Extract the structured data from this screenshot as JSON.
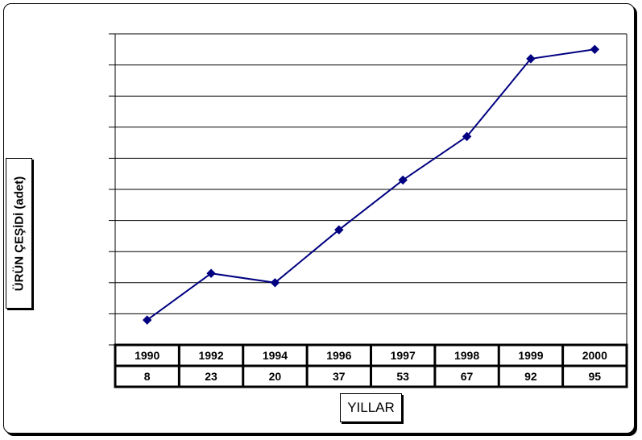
{
  "chart_data": {
    "type": "line",
    "title": "",
    "xlabel": "YILLAR",
    "ylabel": "ÜRÜN ÇEŞİDİ (adet)",
    "categories": [
      "1990",
      "1992",
      "1994",
      "1996",
      "1997",
      "1998",
      "1999",
      "2000"
    ],
    "series": [
      {
        "values": [
          8,
          23,
          20,
          37,
          53,
          67,
          92,
          95
        ]
      }
    ],
    "ylim": [
      0,
      100
    ],
    "grid": true,
    "data_table": true,
    "line_color": "#000080",
    "marker": "diamond"
  }
}
